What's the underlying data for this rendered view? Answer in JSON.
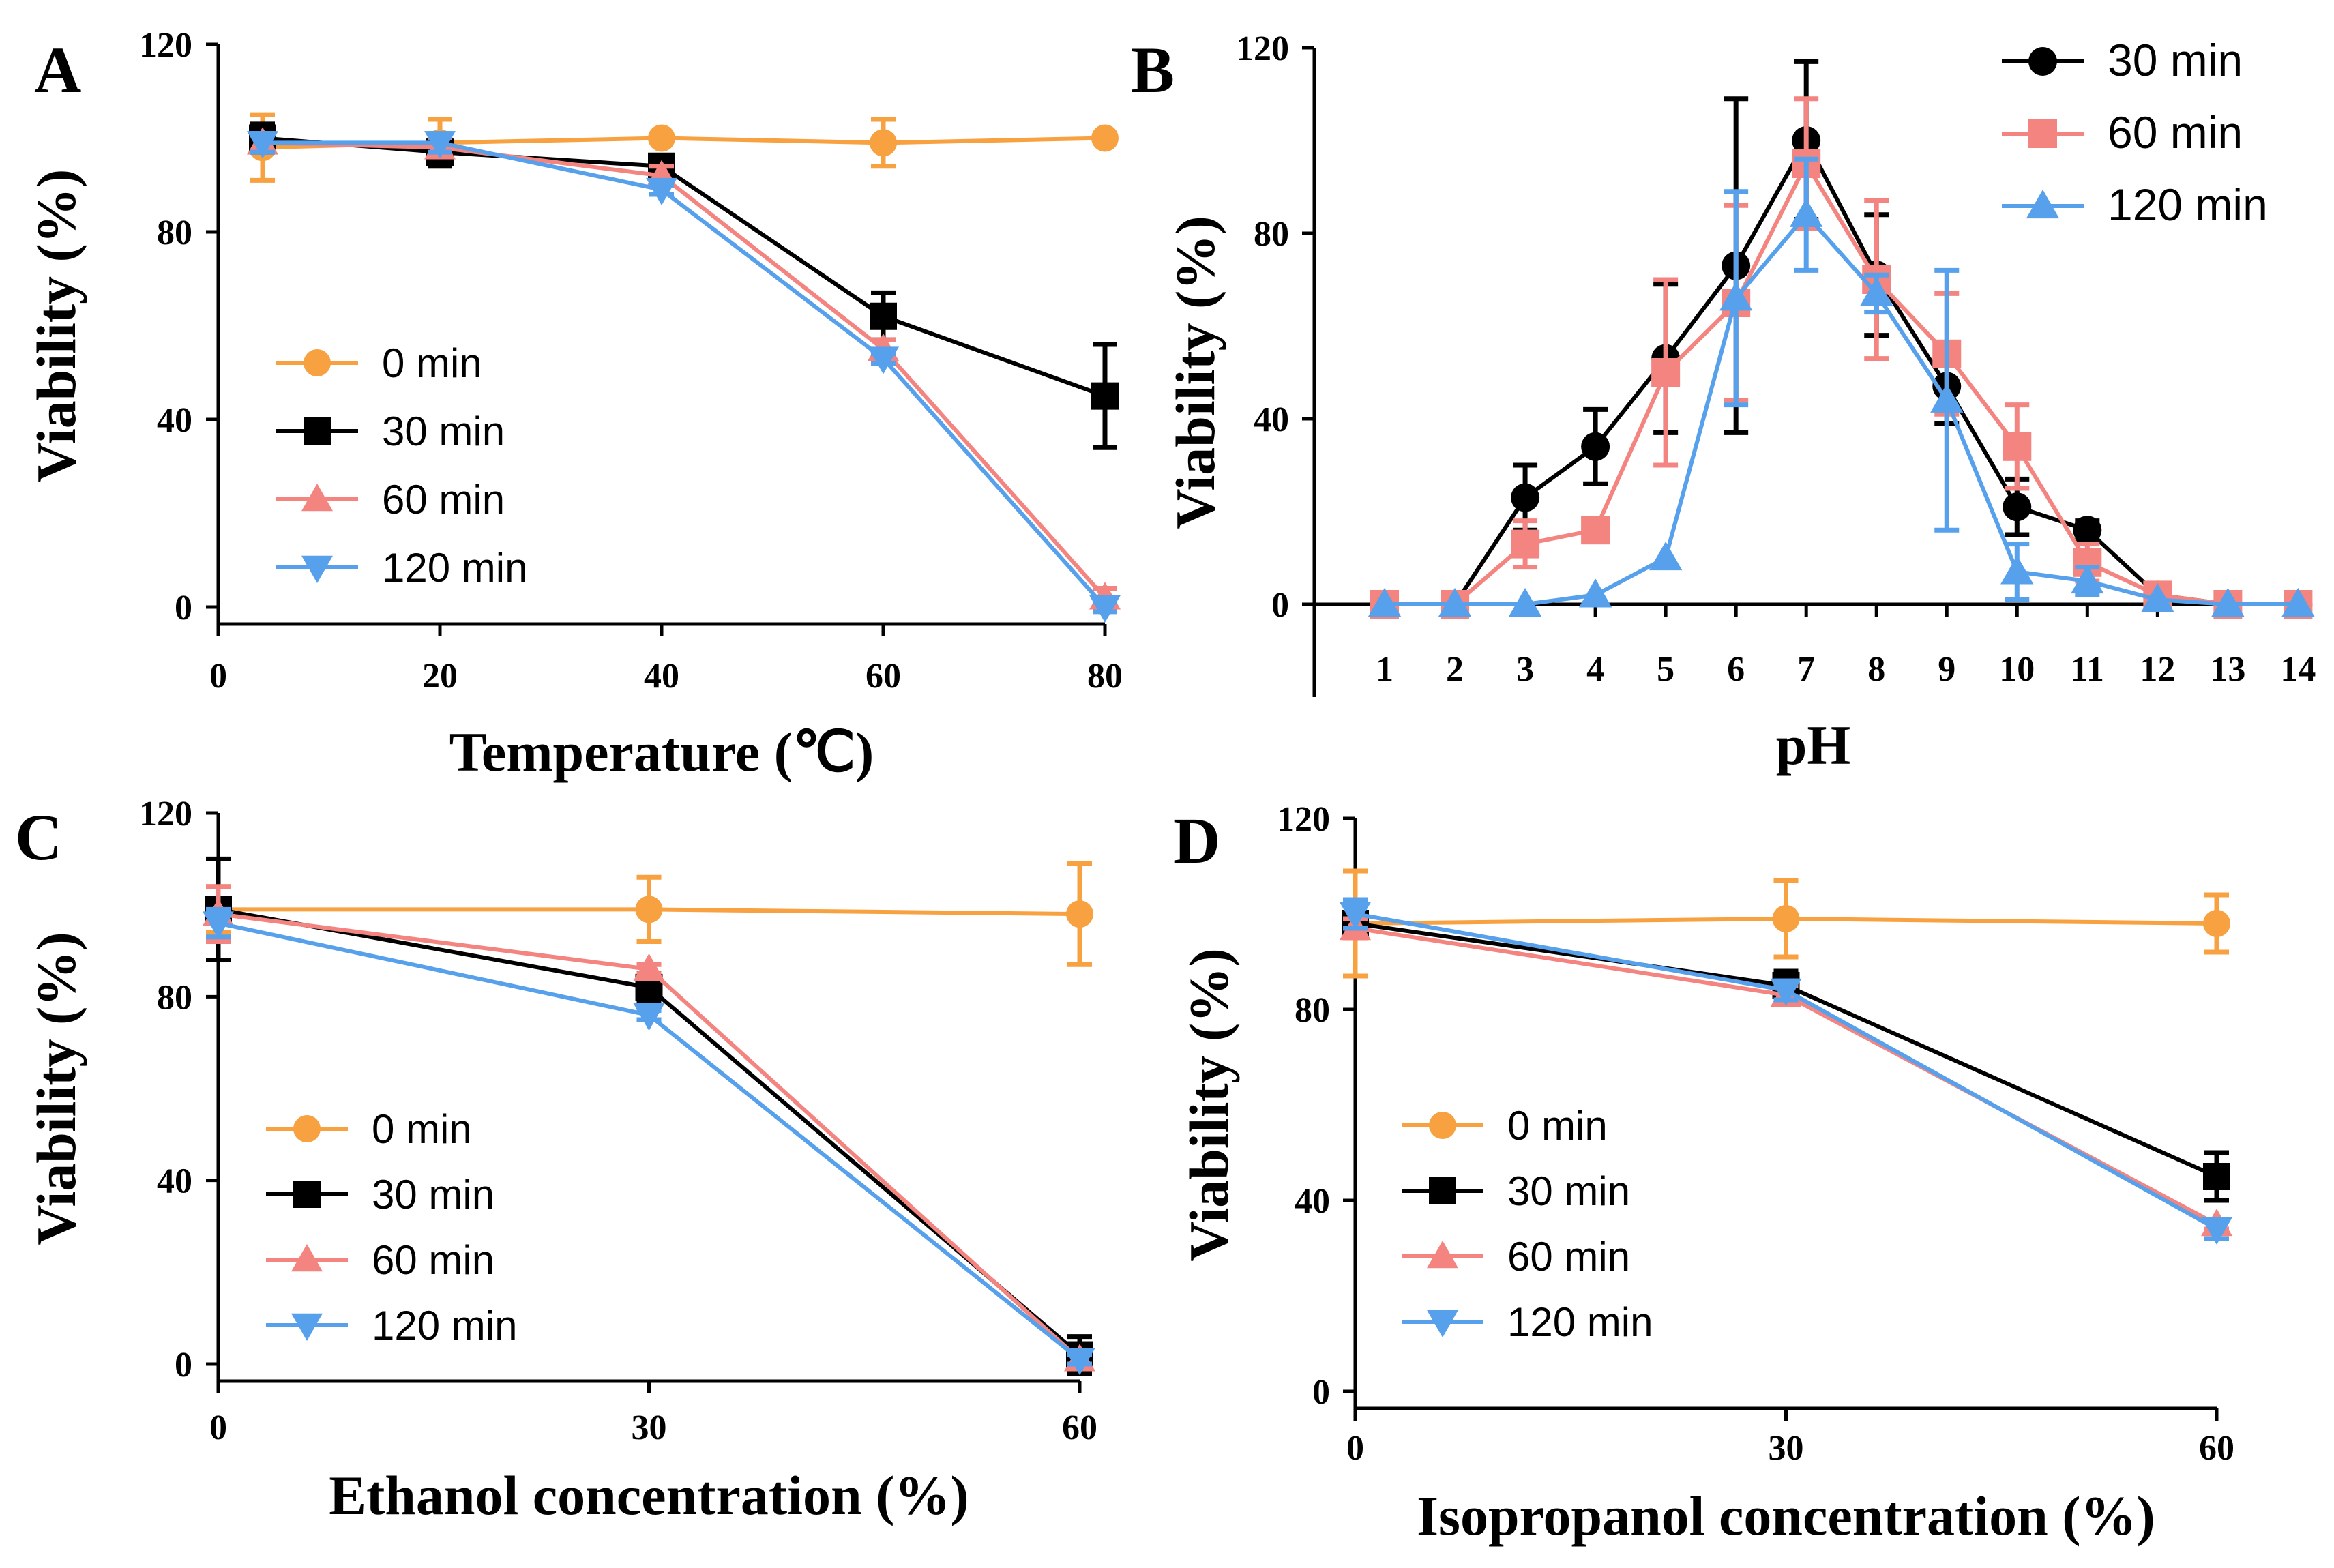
{
  "colors": {
    "0 min": "#F7A140",
    "30 min": "#000000",
    "60 min": "#F48480",
    "120 min": "#57A0EC"
  },
  "chart_data": [
    {
      "panel": "A",
      "type": "line",
      "xlabel": "Temperature (℃)",
      "ylabel": "Viability (%)",
      "xlim": [
        0,
        80
      ],
      "ylim": [
        0,
        120
      ],
      "xticks": [
        0,
        20,
        40,
        60,
        80
      ],
      "xtick_labels": [
        "0",
        "20",
        "40",
        "60",
        "80"
      ],
      "yticks": [
        0,
        40,
        80,
        120
      ],
      "legend_position": "center-left",
      "series": [
        {
          "name": "0 min",
          "marker": "circle",
          "x": [
            4,
            20,
            40,
            60,
            80
          ],
          "y": [
            98,
            99,
            100,
            99,
            100
          ],
          "err": [
            7,
            5,
            0,
            5,
            0
          ]
        },
        {
          "name": "30 min",
          "marker": "square",
          "x": [
            4,
            20,
            40,
            60,
            80
          ],
          "y": [
            100,
            97,
            94,
            62,
            45
          ],
          "err": [
            3,
            3,
            2,
            5,
            11
          ]
        },
        {
          "name": "60 min",
          "marker": "triangle-up",
          "x": [
            4,
            20,
            40,
            60,
            80
          ],
          "y": [
            99,
            98,
            92,
            55,
            2
          ],
          "err": [
            2,
            2,
            2,
            2,
            2
          ]
        },
        {
          "name": "120 min",
          "marker": "triangle-down",
          "x": [
            4,
            20,
            40,
            60,
            80
          ],
          "y": [
            99,
            99,
            89,
            53,
            0
          ],
          "err": [
            2,
            2,
            1,
            1,
            1
          ]
        }
      ]
    },
    {
      "panel": "B",
      "type": "line",
      "xlabel": "pH",
      "ylabel": "Viability (%)",
      "xlim": [
        0,
        14.2
      ],
      "ylim": [
        -20,
        120
      ],
      "xticks": [
        1,
        2,
        3,
        4,
        5,
        6,
        7,
        8,
        9,
        10,
        11,
        12,
        13,
        14
      ],
      "xtick_labels": [
        "1",
        "2",
        "3",
        "4",
        "5",
        "6",
        "7",
        "8",
        "9",
        "10",
        "11",
        "12",
        "13",
        "14"
      ],
      "yticks": [
        0,
        40,
        80,
        120
      ],
      "legend_position": "top-right",
      "series": [
        {
          "name": "30 min",
          "marker": "circle",
          "x": [
            1,
            2,
            3,
            4,
            5,
            6,
            7,
            8,
            9,
            10,
            11,
            12,
            13,
            14
          ],
          "y": [
            0,
            0,
            23,
            34,
            53,
            73,
            100,
            71,
            47,
            21,
            16,
            2,
            0,
            0
          ],
          "err": [
            0,
            0,
            7,
            8,
            16,
            36,
            17,
            13,
            8,
            6,
            2,
            1,
            0,
            0
          ]
        },
        {
          "name": "60 min",
          "marker": "square",
          "x": [
            1,
            2,
            3,
            4,
            5,
            6,
            7,
            8,
            9,
            10,
            11,
            12,
            13,
            14
          ],
          "y": [
            0,
            0,
            13,
            16,
            50,
            65,
            95,
            70,
            54,
            34,
            9,
            2,
            0,
            0
          ],
          "err": [
            0,
            0,
            5,
            2,
            20,
            21,
            14,
            17,
            13,
            9,
            4,
            1,
            0,
            0
          ]
        },
        {
          "name": "120 min",
          "marker": "triangle-up",
          "x": [
            1,
            2,
            3,
            4,
            5,
            6,
            7,
            8,
            9,
            10,
            11,
            12,
            13,
            14
          ],
          "y": [
            0,
            0,
            0,
            2,
            10,
            66,
            84,
            67,
            44,
            7,
            5,
            1,
            0,
            0
          ],
          "err": [
            0,
            0,
            0,
            0,
            0,
            23,
            12,
            4,
            28,
            6,
            3,
            0,
            0,
            0
          ]
        }
      ]
    },
    {
      "panel": "C",
      "type": "line",
      "xlabel": "Ethanol concentration (%)",
      "ylabel": "Viability (%)",
      "xlim": [
        0,
        60
      ],
      "ylim": [
        0,
        120
      ],
      "xticks": [
        0,
        30,
        60
      ],
      "xtick_labels": [
        "0",
        "30",
        "60"
      ],
      "yticks": [
        0,
        40,
        80,
        120
      ],
      "legend_position": "center-left",
      "series": [
        {
          "name": "0 min",
          "marker": "circle",
          "x": [
            0,
            30,
            60
          ],
          "y": [
            99,
            99,
            98
          ],
          "err": [
            5,
            7,
            11
          ]
        },
        {
          "name": "30 min",
          "marker": "square",
          "x": [
            0,
            30,
            60
          ],
          "y": [
            99,
            82,
            2
          ],
          "err": [
            11,
            3,
            4
          ]
        },
        {
          "name": "60 min",
          "marker": "triangle-up",
          "x": [
            0,
            30,
            60
          ],
          "y": [
            98,
            86,
            1
          ],
          "err": [
            6,
            1,
            1
          ]
        },
        {
          "name": "120 min",
          "marker": "triangle-down",
          "x": [
            0,
            30,
            60
          ],
          "y": [
            96,
            76,
            1
          ],
          "err": [
            3,
            1,
            1
          ]
        }
      ]
    },
    {
      "panel": "D",
      "type": "line",
      "xlabel": "Isopropanol concentration (%)",
      "ylabel": "Viability (%)",
      "xlim": [
        0,
        60
      ],
      "ylim": [
        0,
        120
      ],
      "xticks": [
        0,
        30,
        60
      ],
      "xtick_labels": [
        "0",
        "30",
        "60"
      ],
      "yticks": [
        0,
        40,
        80,
        120
      ],
      "legend_position": "center-left",
      "series": [
        {
          "name": "0 min",
          "marker": "circle",
          "x": [
            0,
            30,
            60
          ],
          "y": [
            98,
            99,
            98
          ],
          "err": [
            11,
            8,
            6
          ]
        },
        {
          "name": "30 min",
          "marker": "square",
          "x": [
            0,
            30,
            60
          ],
          "y": [
            98,
            85,
            45
          ],
          "err": [
            2,
            3,
            5
          ]
        },
        {
          "name": "60 min",
          "marker": "triangle-up",
          "x": [
            0,
            30,
            60
          ],
          "y": [
            97,
            83,
            35
          ],
          "err": [
            2,
            2,
            1
          ]
        },
        {
          "name": "120 min",
          "marker": "triangle-down",
          "x": [
            0,
            30,
            60
          ],
          "y": [
            100,
            84,
            34
          ],
          "err": [
            3,
            2,
            2
          ]
        }
      ]
    }
  ]
}
